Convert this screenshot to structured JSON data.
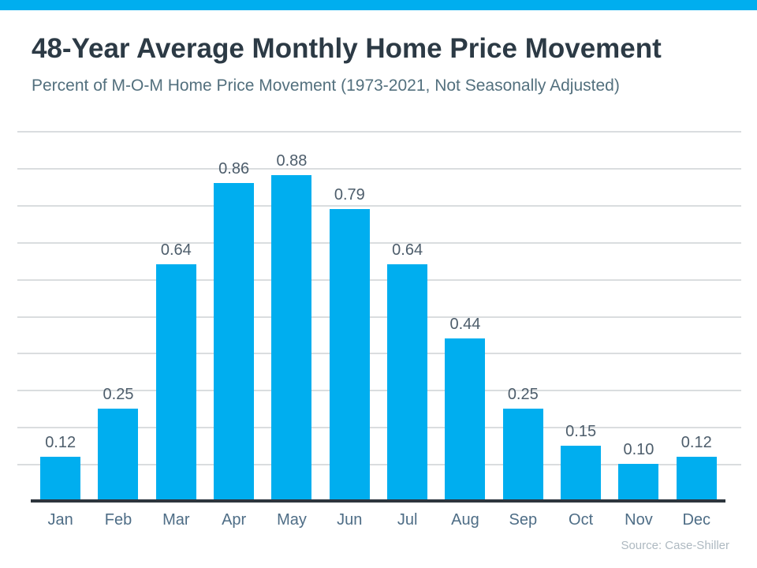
{
  "page": {
    "background": "#ffffff",
    "top_bar_color": "#00AEEF"
  },
  "chart_data": {
    "type": "bar",
    "title": "48-Year Average Monthly Home Price Movement",
    "subtitle": "Percent of M-O-M Home Price Movement (1973-2021, Not Seasonally Adjusted)",
    "categories": [
      "Jan",
      "Feb",
      "Mar",
      "Apr",
      "May",
      "Jun",
      "Jul",
      "Aug",
      "Sep",
      "Oct",
      "Nov",
      "Dec"
    ],
    "values": [
      0.12,
      0.25,
      0.64,
      0.86,
      0.88,
      0.79,
      0.64,
      0.44,
      0.25,
      0.15,
      0.1,
      0.12
    ],
    "value_labels": [
      "0.12",
      "0.25",
      "0.64",
      "0.86",
      "0.88",
      "0.79",
      "0.64",
      "0.44",
      "0.25",
      "0.15",
      "0.10",
      "0.12"
    ],
    "bar_color": "#00AEEF",
    "xlabel": "",
    "ylabel": "",
    "ylim": [
      0,
      1.0
    ],
    "gridline_step": 0.1,
    "grid": true,
    "legend": "none",
    "source": "Source: Case-Shiller"
  }
}
